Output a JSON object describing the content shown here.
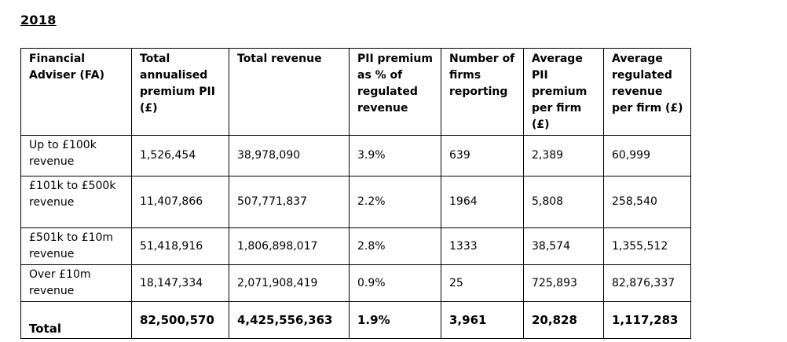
{
  "heading": "2018",
  "table": {
    "headers": [
      "Financial Adviser (FA)",
      "Total annualised premium PII (£)",
      "Total revenue",
      "PII premium as % of regulated revenue",
      "Number of firms reporting",
      "Average PII premium per firm (£)",
      "Average regulated revenue per firm (£)"
    ],
    "rows": [
      [
        "Up to £100k revenue",
        "1,526,454",
        "38,978,090",
        "3.9%",
        "639",
        "2,389",
        "60,999"
      ],
      [
        "£101k to £500k revenue",
        "11,407,866",
        "507,771,837",
        "2.2%",
        "1964",
        "5,808",
        "258,540"
      ],
      [
        "£501k to £10m revenue",
        "51,418,916",
        "1,806,898,017",
        "2.8%",
        "1333",
        "38,574",
        "1,355,512"
      ],
      [
        "Over £10m revenue",
        "18,147,334",
        "2,071,908,419",
        "0.9%",
        "25",
        "725,893",
        "82,876,337"
      ]
    ],
    "total": [
      "Total",
      "82,500,570",
      "4,425,556,363",
      "1.9%",
      "3,961",
      "20,828",
      "1,117,283"
    ]
  }
}
